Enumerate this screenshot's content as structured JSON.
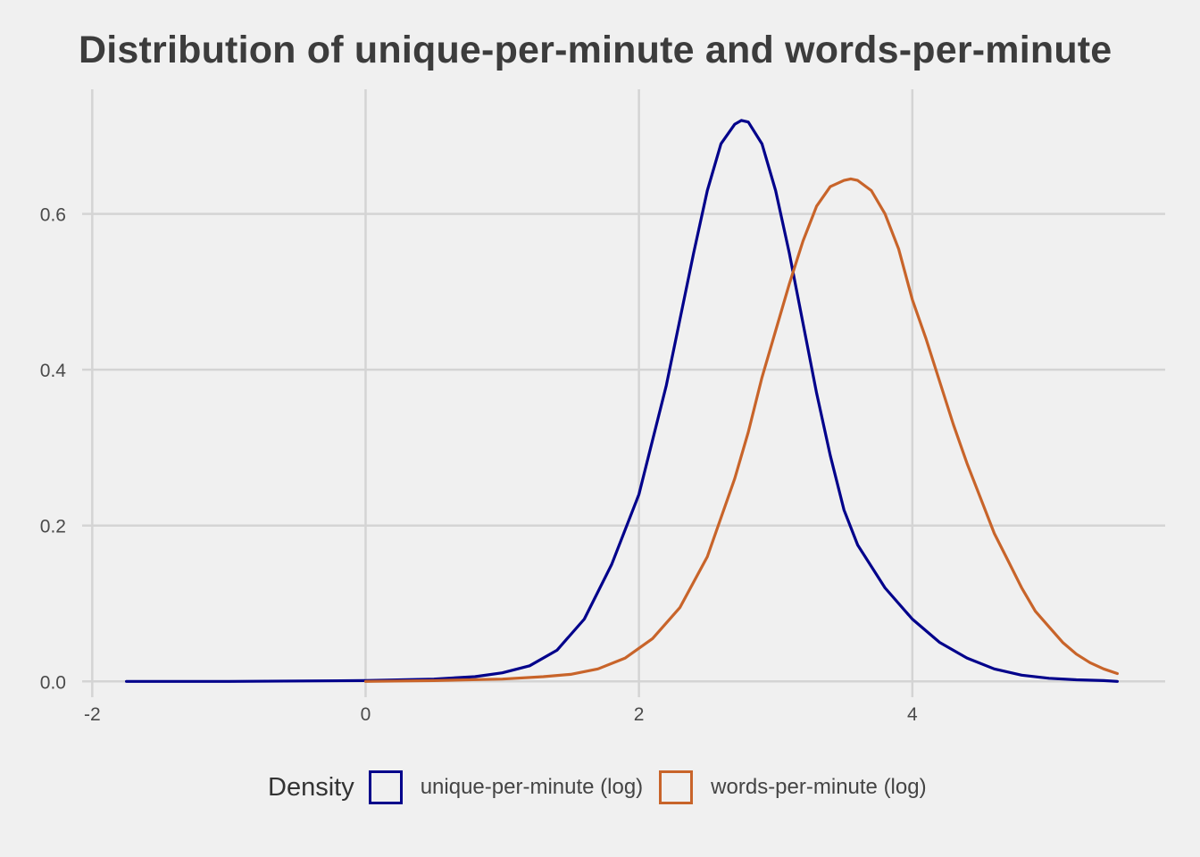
{
  "chart_data": {
    "type": "line",
    "title": "Distribution of unique-per-minute and words-per-minute",
    "xlabel": "",
    "ylabel": "",
    "xlim": [
      -2.1,
      5.85
    ],
    "ylim": [
      -0.01,
      0.76
    ],
    "x_ticks": [
      -2,
      0,
      2,
      4
    ],
    "x_tick_labels": [
      "-2",
      "0",
      "2",
      "4"
    ],
    "y_ticks": [
      0,
      0.2,
      0.4,
      0.6
    ],
    "y_tick_labels": [
      "0.0",
      "0.2",
      "0.4",
      "0.6"
    ],
    "grid": true,
    "legend": {
      "title": "Density",
      "position": "bottom"
    },
    "series": [
      {
        "name": "unique-per-minute (log)",
        "color": "#00008b",
        "points": [
          [
            -1.75,
            0.0
          ],
          [
            -1.0,
            0.0
          ],
          [
            0.0,
            0.001
          ],
          [
            0.5,
            0.003
          ],
          [
            0.8,
            0.006
          ],
          [
            1.0,
            0.011
          ],
          [
            1.2,
            0.02
          ],
          [
            1.4,
            0.04
          ],
          [
            1.6,
            0.08
          ],
          [
            1.8,
            0.15
          ],
          [
            2.0,
            0.24
          ],
          [
            2.2,
            0.38
          ],
          [
            2.4,
            0.55
          ],
          [
            2.5,
            0.63
          ],
          [
            2.6,
            0.69
          ],
          [
            2.7,
            0.715
          ],
          [
            2.75,
            0.72
          ],
          [
            2.8,
            0.718
          ],
          [
            2.9,
            0.69
          ],
          [
            3.0,
            0.63
          ],
          [
            3.1,
            0.55
          ],
          [
            3.2,
            0.46
          ],
          [
            3.3,
            0.37
          ],
          [
            3.4,
            0.29
          ],
          [
            3.5,
            0.22
          ],
          [
            3.6,
            0.175
          ],
          [
            3.8,
            0.12
          ],
          [
            4.0,
            0.08
          ],
          [
            4.2,
            0.05
          ],
          [
            4.4,
            0.03
          ],
          [
            4.6,
            0.016
          ],
          [
            4.8,
            0.008
          ],
          [
            5.0,
            0.004
          ],
          [
            5.2,
            0.002
          ],
          [
            5.4,
            0.001
          ],
          [
            5.5,
            0.0
          ]
        ]
      },
      {
        "name": "words-per-minute (log)",
        "color": "#c8642a",
        "points": [
          [
            0.0,
            0.0
          ],
          [
            0.5,
            0.001
          ],
          [
            1.0,
            0.003
          ],
          [
            1.3,
            0.006
          ],
          [
            1.5,
            0.009
          ],
          [
            1.7,
            0.016
          ],
          [
            1.9,
            0.03
          ],
          [
            2.1,
            0.055
          ],
          [
            2.3,
            0.095
          ],
          [
            2.5,
            0.16
          ],
          [
            2.7,
            0.26
          ],
          [
            2.8,
            0.32
          ],
          [
            2.9,
            0.39
          ],
          [
            3.0,
            0.45
          ],
          [
            3.1,
            0.51
          ],
          [
            3.2,
            0.565
          ],
          [
            3.3,
            0.61
          ],
          [
            3.4,
            0.635
          ],
          [
            3.5,
            0.643
          ],
          [
            3.55,
            0.645
          ],
          [
            3.6,
            0.643
          ],
          [
            3.7,
            0.63
          ],
          [
            3.8,
            0.6
          ],
          [
            3.9,
            0.555
          ],
          [
            4.0,
            0.49
          ],
          [
            4.1,
            0.44
          ],
          [
            4.2,
            0.385
          ],
          [
            4.3,
            0.33
          ],
          [
            4.4,
            0.28
          ],
          [
            4.5,
            0.235
          ],
          [
            4.6,
            0.19
          ],
          [
            4.7,
            0.155
          ],
          [
            4.8,
            0.12
          ],
          [
            4.9,
            0.09
          ],
          [
            5.0,
            0.07
          ],
          [
            5.1,
            0.05
          ],
          [
            5.2,
            0.035
          ],
          [
            5.3,
            0.024
          ],
          [
            5.4,
            0.016
          ],
          [
            5.5,
            0.01
          ]
        ]
      }
    ]
  }
}
